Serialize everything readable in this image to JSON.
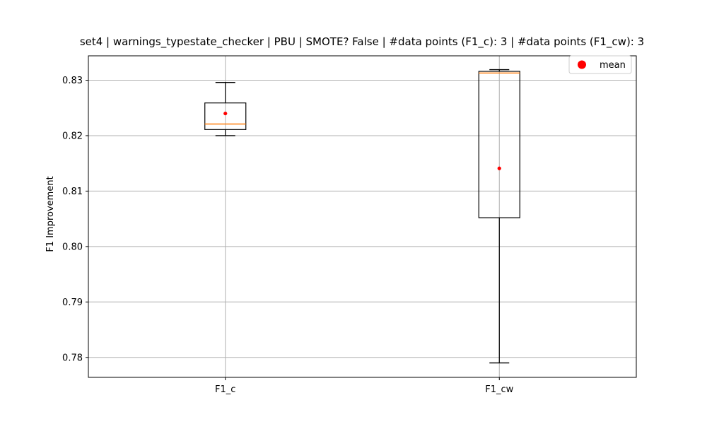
{
  "chart_data": {
    "type": "box",
    "title": "set4 | warnings_typestate_checker | PBU | SMOTE? False | #data points (F1_c): 3 | #data points (F1_cw): 3",
    "xlabel": "",
    "ylabel": "F1 Improvement",
    "categories": [
      "F1_c",
      "F1_cw"
    ],
    "boxes": [
      {
        "category": "F1_c",
        "whisker_low": 0.82,
        "q1": 0.8211,
        "median": 0.8221,
        "q3": 0.8259,
        "whisker_high": 0.8296,
        "mean": 0.824
      },
      {
        "category": "F1_cw",
        "whisker_low": 0.779,
        "q1": 0.8052,
        "median": 0.8313,
        "q3": 0.8316,
        "whisker_high": 0.8319,
        "mean": 0.8141
      }
    ],
    "ylim": [
      0.7764,
      0.8344
    ],
    "yticks": [
      0.78,
      0.79,
      0.8,
      0.81,
      0.82,
      0.83
    ],
    "ytick_labels": [
      "0.78",
      "0.79",
      "0.80",
      "0.81",
      "0.82",
      "0.83"
    ],
    "grid": true,
    "legend": {
      "position": "top-right",
      "entries": [
        {
          "label": "mean",
          "marker": "circle",
          "color": "#ff0000"
        }
      ]
    },
    "colors": {
      "box": "#000000",
      "median": "#ff7f0e",
      "mean": "#ff0000",
      "grid": "#b0b0b0"
    }
  }
}
